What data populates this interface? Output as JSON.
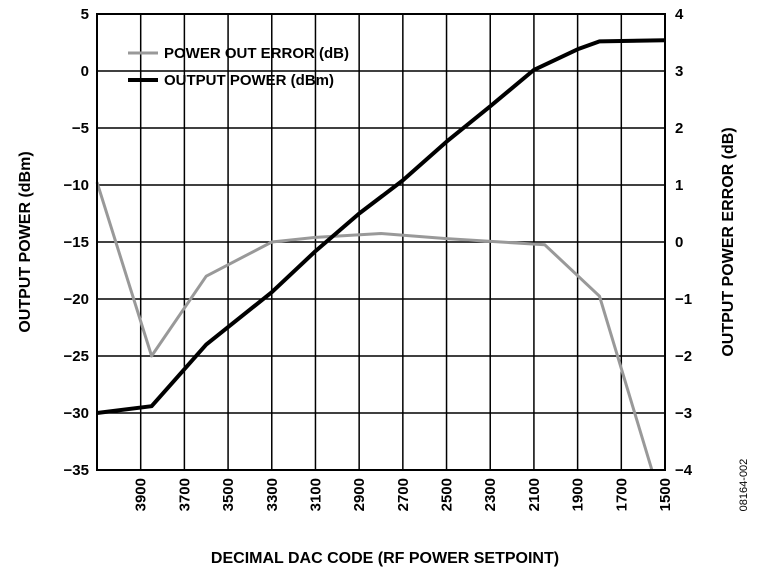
{
  "chart_data": {
    "type": "line",
    "xlabel": "DECIMAL DAC CODE (RF POWER SETPOINT)",
    "ylabel": "OUTPUT POWER (dBm)",
    "y2label": "OUTPUT POWER ERROR (dB)",
    "figure_id": "08164-002",
    "x_reversed": true,
    "xlim": [
      4100,
      1500
    ],
    "ylim": [
      -35,
      5
    ],
    "y2lim": [
      -4,
      4
    ],
    "grid": true,
    "legend_position": "top-left",
    "x_ticks": [
      3900,
      3700,
      3500,
      3300,
      3100,
      2900,
      2700,
      2500,
      2300,
      2100,
      1900,
      1700,
      1500
    ],
    "x_tick_labels": [
      "3900",
      "3700",
      "3500",
      "3300",
      "3100",
      "2900",
      "2700",
      "2500",
      "2300",
      "2100",
      "1900",
      "1700",
      "1500"
    ],
    "y_ticks": [
      5,
      0,
      -5,
      -10,
      -15,
      -20,
      -25,
      -30,
      -35
    ],
    "y_tick_labels": [
      "5",
      "0",
      "−5",
      "−10",
      "−15",
      "−20",
      "−25",
      "−30",
      "−35"
    ],
    "y2_ticks": [
      4,
      3,
      2,
      1,
      0,
      -1,
      -2,
      -3,
      -4
    ],
    "y2_tick_labels": [
      "4",
      "3",
      "2",
      "1",
      "0",
      "−1",
      "−2",
      "−3",
      "−4"
    ],
    "series": [
      {
        "name": "POWER OUT ERROR (dB)",
        "axis": "right",
        "color": "#999999",
        "x": [
          4100,
          3850,
          3600,
          3300,
          3100,
          2800,
          2500,
          2050,
          1800,
          1560
        ],
        "y": [
          1.05,
          -2.0,
          -0.6,
          0.0,
          0.08,
          0.15,
          0.06,
          -0.05,
          -0.95,
          -4.0
        ]
      },
      {
        "name": "OUTPUT POWER (dBm)",
        "axis": "left",
        "color": "#000000",
        "x": [
          4100,
          3850,
          3600,
          3300,
          3100,
          2900,
          2700,
          2500,
          2300,
          2100,
          1900,
          1800,
          1500
        ],
        "y": [
          -30.0,
          -29.4,
          -24.0,
          -19.4,
          -15.8,
          -12.5,
          -9.6,
          -6.2,
          -3.1,
          0.1,
          1.9,
          2.6,
          2.7
        ]
      }
    ]
  }
}
